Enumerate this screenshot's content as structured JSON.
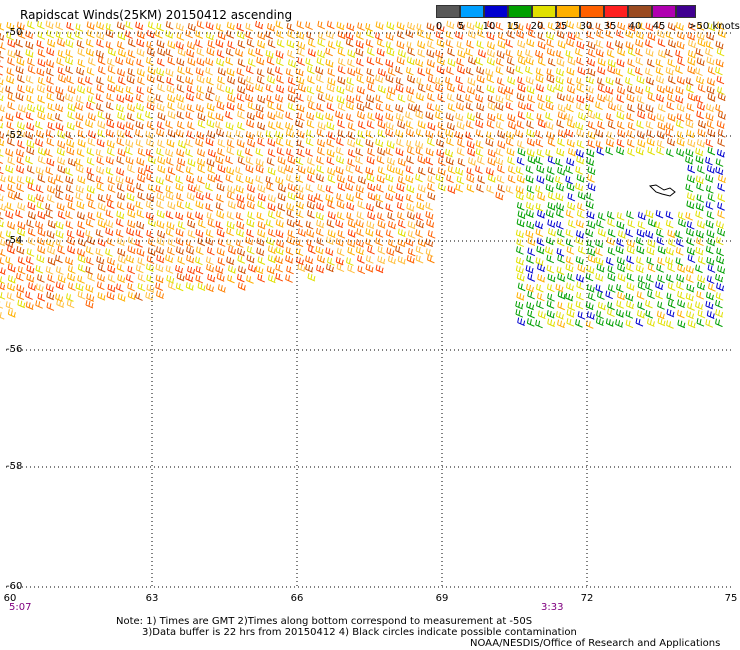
{
  "title": "Rapidscat Winds(25KM) 20150412 ascending",
  "legend": {
    "colors": [
      "#585858",
      "#a0a0a0",
      "#00a0ff",
      "#0000d0",
      "#00a000",
      "#e0e000",
      "#ffb000",
      "#ff6000",
      "#ff2020",
      "#b00000",
      "#9a4a20",
      "#b000b0",
      "#400090"
    ],
    "labels": [
      "0",
      "5",
      "10",
      "15",
      "20",
      "25",
      "30",
      "35",
      "40",
      "45",
      ">50 knots"
    ]
  },
  "map": {
    "lat_labels": [
      "-50",
      "-52",
      "-54",
      "-56",
      "-58",
      "-60"
    ],
    "lon_labels": [
      "60",
      "63",
      "66",
      "69",
      "72",
      "75"
    ],
    "time_labels": [
      "5:07",
      "3:33"
    ]
  },
  "notes": {
    "line1": "Note: 1) Times are GMT 2)Times along bottom correspond to measurement at -50S",
    "line2": "3)Data buffer is 22 hrs from 20150412 4) Black circles indicate possible contamination",
    "credit": "NOAA/NESDIS/Office of Research and Applications"
  }
}
